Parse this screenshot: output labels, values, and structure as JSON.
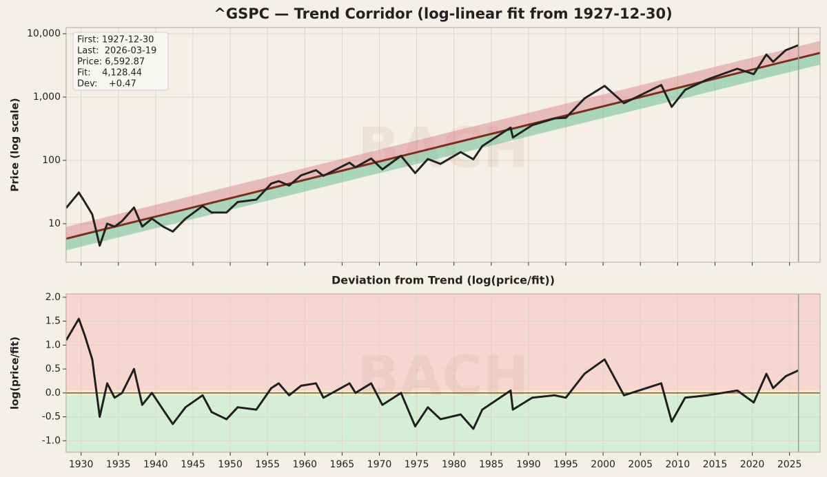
{
  "chart_data": [
    {
      "type": "line",
      "title": "^GSPC — Trend Corridor (log-linear fit from 1927-12-30)",
      "ylabel": "Price (log scale)",
      "watermark": "BACH",
      "annotation": [
        "First: 1927-12-30",
        "Last:  2026-03-19",
        "Price: 6,592.87",
        "Fit:    4,128.44",
        "Dev:    +0.47"
      ],
      "yscale": "log",
      "grid": true,
      "show_xtick_labels": false,
      "xlim": [
        1928,
        2029.1
      ],
      "xticks": [
        1930,
        1935,
        1940,
        1945,
        1950,
        1955,
        1960,
        1965,
        1970,
        1975,
        1980,
        1985,
        1990,
        1995,
        2000,
        2005,
        2010,
        2015,
        2020,
        2025
      ],
      "ylim": [
        2.46,
        12530
      ],
      "yticks": [
        10,
        100,
        {
          "value": 1000,
          "label": "1,000"
        },
        {
          "value": 10000,
          "label": "10,000"
        }
      ],
      "vline": 2026.2,
      "bands": [
        {
          "color": "#d9868a",
          "x": [
            1928,
            2029.1
          ],
          "lower": [
            5.8,
            4990
          ],
          "upper": [
            8.9,
            7700
          ]
        },
        {
          "color": "#5fb98c",
          "x": [
            1928,
            2029.1
          ],
          "lower": [
            3.8,
            3250
          ],
          "upper": [
            5.8,
            4990
          ]
        }
      ],
      "fit": {
        "color": "#7a2e1c",
        "x": [
          1928,
          2029.1
        ],
        "values": [
          5.8,
          4990
        ]
      },
      "x": [
        1928.0,
        1929.7,
        1930.5,
        1931.5,
        1932.5,
        1933.5,
        1934.5,
        1935.5,
        1937.1,
        1938.2,
        1939.5,
        1941.0,
        1942.3,
        1944.0,
        1946.3,
        1947.5,
        1949.5,
        1951.0,
        1953.5,
        1955.5,
        1956.5,
        1957.9,
        1959.5,
        1961.5,
        1962.5,
        1966.0,
        1966.8,
        1968.9,
        1970.4,
        1972.9,
        1974.8,
        1976.5,
        1978.2,
        1980.9,
        1982.6,
        1983.8,
        1987.6,
        1987.9,
        1990.5,
        1993.5,
        1995.0,
        1997.5,
        2000.2,
        2002.8,
        2007.8,
        2009.2,
        2011.0,
        2014.0,
        2018.0,
        2020.2,
        2021.9,
        2022.8,
        2024.5,
        2026.2
      ],
      "series": [
        {
          "color": "#222222",
          "values": [
            17.7,
            31,
            22,
            14,
            4.5,
            10,
            9,
            11,
            18,
            9,
            12,
            9,
            7.5,
            12,
            19,
            15,
            15,
            22,
            24,
            43,
            47,
            40,
            58,
            70,
            57,
            92,
            78,
            107,
            72,
            118,
            63,
            105,
            88,
            135,
            104,
            168,
            330,
            230,
            360,
            460,
            470,
            950,
            1500,
            800,
            1550,
            700,
            1300,
            1900,
            2800,
            2300,
            4700,
            3600,
            5500,
            6592.87
          ]
        }
      ]
    },
    {
      "type": "line",
      "title": "Deviation from Trend (log(price/fit))",
      "ylabel": "log(price/fit)",
      "watermark": "BACH",
      "grid": true,
      "show_xtick_labels": true,
      "xlim": [
        1928,
        2029.1
      ],
      "xticks": [
        1930,
        1935,
        1940,
        1945,
        1950,
        1955,
        1960,
        1965,
        1970,
        1975,
        1980,
        1985,
        1990,
        1995,
        2000,
        2005,
        2010,
        2015,
        2020,
        2025
      ],
      "ylim": [
        -1.24,
        2.07
      ],
      "yticks": [
        {
          "value": -1,
          "label": "-1.0"
        },
        -0.5,
        {
          "value": 0,
          "label": "0.0"
        },
        0.5,
        {
          "value": 1,
          "label": "1.0"
        },
        1.5,
        {
          "value": 2,
          "label": "2.0"
        }
      ],
      "vline": 2026.2,
      "hline": 0,
      "zones": [
        {
          "from": 0.05,
          "to": 2.07,
          "color": "#f7d6d0"
        },
        {
          "from": -0.05,
          "to": 0.05,
          "color": "#f8ecc4"
        },
        {
          "from": -1.24,
          "to": -0.05,
          "color": "#d5efd6"
        }
      ],
      "x": [
        1928.0,
        1929.7,
        1930.5,
        1931.5,
        1932.5,
        1933.5,
        1934.5,
        1935.5,
        1937.1,
        1938.2,
        1939.5,
        1941.0,
        1942.3,
        1944.0,
        1946.3,
        1947.5,
        1949.5,
        1951.0,
        1953.5,
        1955.5,
        1956.5,
        1957.9,
        1959.5,
        1961.5,
        1962.5,
        1966.0,
        1966.8,
        1968.9,
        1970.4,
        1972.9,
        1974.8,
        1976.5,
        1978.2,
        1980.9,
        1982.6,
        1983.8,
        1987.6,
        1987.9,
        1990.5,
        1993.5,
        1995.0,
        1997.5,
        2000.2,
        2002.8,
        2007.8,
        2009.2,
        2011.0,
        2014.0,
        2018.0,
        2020.2,
        2021.9,
        2022.8,
        2024.5,
        2026.2
      ],
      "series": [
        {
          "color": "#1f1f1f",
          "values": [
            1.1,
            1.55,
            1.2,
            0.7,
            -0.5,
            0.2,
            -0.1,
            0.0,
            0.5,
            -0.25,
            0.0,
            -0.35,
            -0.65,
            -0.3,
            -0.05,
            -0.4,
            -0.55,
            -0.3,
            -0.35,
            0.1,
            0.2,
            -0.05,
            0.15,
            0.2,
            -0.1,
            0.2,
            0.0,
            0.2,
            -0.25,
            0.0,
            -0.7,
            -0.3,
            -0.55,
            -0.45,
            -0.75,
            -0.35,
            0.05,
            -0.35,
            -0.1,
            -0.05,
            -0.1,
            0.4,
            0.7,
            -0.05,
            0.2,
            -0.6,
            -0.1,
            -0.05,
            0.05,
            -0.2,
            0.4,
            0.1,
            0.35,
            0.47
          ]
        }
      ]
    }
  ]
}
